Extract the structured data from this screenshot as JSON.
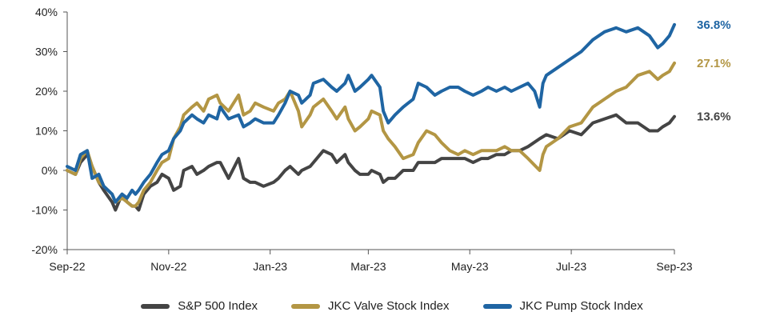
{
  "chart_data": {
    "type": "line",
    "title": "",
    "xlabel": "",
    "ylabel": "",
    "x_ticks": [
      "Sep-22",
      "Nov-22",
      "Jan-23",
      "Mar-23",
      "May-23",
      "Jul-23",
      "Sep-23"
    ],
    "ylim": [
      -20,
      40
    ],
    "y_ticks": [
      "-20%",
      "-10%",
      "0%",
      "10%",
      "20%",
      "30%",
      "40%"
    ],
    "grid": "none",
    "legend_position": "bottom",
    "series": [
      {
        "name": "S&P 500 Index",
        "color": "#444444",
        "end_label": "13.6%",
        "points": [
          [
            "2022-09-01",
            0
          ],
          [
            "2022-09-06",
            -1
          ],
          [
            "2022-09-09",
            2
          ],
          [
            "2022-09-13",
            4
          ],
          [
            "2022-09-16",
            1
          ],
          [
            "2022-09-20",
            -3
          ],
          [
            "2022-09-23",
            -5
          ],
          [
            "2022-09-28",
            -8
          ],
          [
            "2022-09-30",
            -10
          ],
          [
            "2022-10-04",
            -6
          ],
          [
            "2022-10-07",
            -8
          ],
          [
            "2022-10-10",
            -9
          ],
          [
            "2022-10-12",
            -9
          ],
          [
            "2022-10-14",
            -10
          ],
          [
            "2022-10-17",
            -6
          ],
          [
            "2022-10-21",
            -4
          ],
          [
            "2022-10-25",
            -3
          ],
          [
            "2022-10-28",
            -1
          ],
          [
            "2022-11-01",
            -2
          ],
          [
            "2022-11-04",
            -5
          ],
          [
            "2022-11-08",
            -4
          ],
          [
            "2022-11-10",
            0
          ],
          [
            "2022-11-15",
            1
          ],
          [
            "2022-11-18",
            -1
          ],
          [
            "2022-11-22",
            0
          ],
          [
            "2022-11-25",
            1
          ],
          [
            "2022-11-30",
            2
          ],
          [
            "2022-12-02",
            2
          ],
          [
            "2022-12-07",
            -2
          ],
          [
            "2022-12-13",
            3
          ],
          [
            "2022-12-16",
            -2
          ],
          [
            "2022-12-20",
            -3
          ],
          [
            "2022-12-23",
            -3
          ],
          [
            "2022-12-28",
            -4
          ],
          [
            "2023-01-03",
            -3
          ],
          [
            "2023-01-06",
            -2
          ],
          [
            "2023-01-10",
            0
          ],
          [
            "2023-01-13",
            1
          ],
          [
            "2023-01-18",
            -1
          ],
          [
            "2023-01-20",
            0
          ],
          [
            "2023-01-25",
            1
          ],
          [
            "2023-01-27",
            2
          ],
          [
            "2023-02-02",
            5
          ],
          [
            "2023-02-07",
            4
          ],
          [
            "2023-02-10",
            2
          ],
          [
            "2023-02-15",
            4
          ],
          [
            "2023-02-17",
            2
          ],
          [
            "2023-02-21",
            0
          ],
          [
            "2023-02-24",
            -1
          ],
          [
            "2023-03-01",
            -1
          ],
          [
            "2023-03-03",
            0
          ],
          [
            "2023-03-08",
            -1
          ],
          [
            "2023-03-10",
            -3
          ],
          [
            "2023-03-13",
            -2
          ],
          [
            "2023-03-17",
            -2
          ],
          [
            "2023-03-22",
            0
          ],
          [
            "2023-03-28",
            0
          ],
          [
            "2023-03-31",
            2
          ],
          [
            "2023-04-05",
            2
          ],
          [
            "2023-04-10",
            2
          ],
          [
            "2023-04-14",
            3
          ],
          [
            "2023-04-19",
            3
          ],
          [
            "2023-04-24",
            3
          ],
          [
            "2023-04-28",
            3
          ],
          [
            "2023-05-03",
            2
          ],
          [
            "2023-05-08",
            3
          ],
          [
            "2023-05-12",
            3
          ],
          [
            "2023-05-17",
            4
          ],
          [
            "2023-05-22",
            4
          ],
          [
            "2023-05-26",
            5
          ],
          [
            "2023-05-31",
            5
          ],
          [
            "2023-06-05",
            6
          ],
          [
            "2023-06-12",
            8
          ],
          [
            "2023-06-16",
            9
          ],
          [
            "2023-06-23",
            8
          ],
          [
            "2023-06-30",
            10
          ],
          [
            "2023-07-07",
            9
          ],
          [
            "2023-07-14",
            12
          ],
          [
            "2023-07-21",
            13
          ],
          [
            "2023-07-28",
            14
          ],
          [
            "2023-08-03",
            12
          ],
          [
            "2023-08-10",
            12
          ],
          [
            "2023-08-17",
            10
          ],
          [
            "2023-08-22",
            10
          ],
          [
            "2023-08-25",
            11
          ],
          [
            "2023-08-29",
            12
          ],
          [
            "2023-09-01",
            13.6
          ]
        ]
      },
      {
        "name": "JKC Valve Stock Index",
        "color": "#B39644",
        "end_label": "27.1%",
        "points": [
          [
            "2022-09-01",
            0
          ],
          [
            "2022-09-06",
            -1
          ],
          [
            "2022-09-09",
            3
          ],
          [
            "2022-09-13",
            5
          ],
          [
            "2022-09-16",
            1
          ],
          [
            "2022-09-20",
            -3
          ],
          [
            "2022-09-23",
            -4
          ],
          [
            "2022-09-28",
            -6
          ],
          [
            "2022-09-30",
            -8
          ],
          [
            "2022-10-04",
            -7
          ],
          [
            "2022-10-07",
            -8
          ],
          [
            "2022-10-10",
            -9
          ],
          [
            "2022-10-12",
            -9
          ],
          [
            "2022-10-14",
            -8
          ],
          [
            "2022-10-17",
            -5
          ],
          [
            "2022-10-21",
            -3
          ],
          [
            "2022-10-25",
            0
          ],
          [
            "2022-10-28",
            2
          ],
          [
            "2022-11-01",
            3
          ],
          [
            "2022-11-04",
            8
          ],
          [
            "2022-11-08",
            11
          ],
          [
            "2022-11-10",
            14
          ],
          [
            "2022-11-15",
            16
          ],
          [
            "2022-11-18",
            17
          ],
          [
            "2022-11-22",
            15
          ],
          [
            "2022-11-25",
            18
          ],
          [
            "2022-11-30",
            19
          ],
          [
            "2022-12-02",
            17
          ],
          [
            "2022-12-07",
            15
          ],
          [
            "2022-12-13",
            19
          ],
          [
            "2022-12-16",
            14
          ],
          [
            "2022-12-20",
            15
          ],
          [
            "2022-12-23",
            17
          ],
          [
            "2022-12-28",
            16
          ],
          [
            "2023-01-03",
            15
          ],
          [
            "2023-01-06",
            17
          ],
          [
            "2023-01-10",
            18
          ],
          [
            "2023-01-13",
            20
          ],
          [
            "2023-01-18",
            15
          ],
          [
            "2023-01-20",
            11
          ],
          [
            "2023-01-25",
            14
          ],
          [
            "2023-01-27",
            16
          ],
          [
            "2023-02-02",
            18
          ],
          [
            "2023-02-07",
            15
          ],
          [
            "2023-02-10",
            13
          ],
          [
            "2023-02-15",
            16
          ],
          [
            "2023-02-17",
            13
          ],
          [
            "2023-02-21",
            10
          ],
          [
            "2023-02-24",
            11
          ],
          [
            "2023-03-01",
            13
          ],
          [
            "2023-03-03",
            15
          ],
          [
            "2023-03-08",
            14
          ],
          [
            "2023-03-10",
            10
          ],
          [
            "2023-03-13",
            8
          ],
          [
            "2023-03-17",
            6
          ],
          [
            "2023-03-22",
            3
          ],
          [
            "2023-03-28",
            4
          ],
          [
            "2023-03-31",
            7
          ],
          [
            "2023-04-05",
            10
          ],
          [
            "2023-04-10",
            9
          ],
          [
            "2023-04-14",
            7
          ],
          [
            "2023-04-19",
            5
          ],
          [
            "2023-04-24",
            4
          ],
          [
            "2023-04-28",
            5
          ],
          [
            "2023-05-03",
            4
          ],
          [
            "2023-05-08",
            5
          ],
          [
            "2023-05-12",
            5
          ],
          [
            "2023-05-17",
            5
          ],
          [
            "2023-05-22",
            6
          ],
          [
            "2023-05-26",
            5
          ],
          [
            "2023-05-31",
            5
          ],
          [
            "2023-06-05",
            3
          ],
          [
            "2023-06-12",
            0
          ],
          [
            "2023-06-14",
            4
          ],
          [
            "2023-06-16",
            6
          ],
          [
            "2023-06-23",
            8
          ],
          [
            "2023-06-30",
            11
          ],
          [
            "2023-07-07",
            12
          ],
          [
            "2023-07-14",
            16
          ],
          [
            "2023-07-21",
            18
          ],
          [
            "2023-07-28",
            20
          ],
          [
            "2023-08-03",
            21
          ],
          [
            "2023-08-10",
            24
          ],
          [
            "2023-08-17",
            25
          ],
          [
            "2023-08-22",
            23
          ],
          [
            "2023-08-25",
            24
          ],
          [
            "2023-08-29",
            25
          ],
          [
            "2023-09-01",
            27.1
          ]
        ]
      },
      {
        "name": "JKC Pump Stock Index",
        "color": "#1F65A3",
        "end_label": "36.8%",
        "points": [
          [
            "2022-09-01",
            1
          ],
          [
            "2022-09-06",
            0
          ],
          [
            "2022-09-09",
            4
          ],
          [
            "2022-09-13",
            5
          ],
          [
            "2022-09-16",
            -2
          ],
          [
            "2022-09-20",
            -1
          ],
          [
            "2022-09-23",
            -4
          ],
          [
            "2022-09-28",
            -6
          ],
          [
            "2022-09-30",
            -8
          ],
          [
            "2022-10-04",
            -6
          ],
          [
            "2022-10-07",
            -7
          ],
          [
            "2022-10-10",
            -5
          ],
          [
            "2022-10-12",
            -6
          ],
          [
            "2022-10-14",
            -5
          ],
          [
            "2022-10-17",
            -3
          ],
          [
            "2022-10-21",
            -1
          ],
          [
            "2022-10-25",
            2
          ],
          [
            "2022-10-28",
            4
          ],
          [
            "2022-11-01",
            5
          ],
          [
            "2022-11-04",
            8
          ],
          [
            "2022-11-08",
            10
          ],
          [
            "2022-11-10",
            12
          ],
          [
            "2022-11-15",
            14
          ],
          [
            "2022-11-18",
            13
          ],
          [
            "2022-11-22",
            12
          ],
          [
            "2022-11-25",
            14
          ],
          [
            "2022-11-30",
            13
          ],
          [
            "2022-12-02",
            16
          ],
          [
            "2022-12-07",
            13
          ],
          [
            "2022-12-13",
            14
          ],
          [
            "2022-12-16",
            11
          ],
          [
            "2022-12-20",
            12
          ],
          [
            "2022-12-23",
            13
          ],
          [
            "2022-12-28",
            12
          ],
          [
            "2023-01-03",
            12
          ],
          [
            "2023-01-06",
            14
          ],
          [
            "2023-01-10",
            17
          ],
          [
            "2023-01-13",
            20
          ],
          [
            "2023-01-18",
            19
          ],
          [
            "2023-01-20",
            17
          ],
          [
            "2023-01-25",
            19
          ],
          [
            "2023-01-27",
            22
          ],
          [
            "2023-02-02",
            23
          ],
          [
            "2023-02-07",
            21
          ],
          [
            "2023-02-10",
            20
          ],
          [
            "2023-02-15",
            22
          ],
          [
            "2023-02-17",
            24
          ],
          [
            "2023-02-21",
            20
          ],
          [
            "2023-02-24",
            21
          ],
          [
            "2023-03-01",
            23
          ],
          [
            "2023-03-03",
            24
          ],
          [
            "2023-03-08",
            21
          ],
          [
            "2023-03-10",
            15
          ],
          [
            "2023-03-13",
            12
          ],
          [
            "2023-03-17",
            14
          ],
          [
            "2023-03-22",
            16
          ],
          [
            "2023-03-28",
            18
          ],
          [
            "2023-03-31",
            22
          ],
          [
            "2023-04-05",
            21
          ],
          [
            "2023-04-10",
            19
          ],
          [
            "2023-04-14",
            20
          ],
          [
            "2023-04-19",
            21
          ],
          [
            "2023-04-24",
            21
          ],
          [
            "2023-04-28",
            20
          ],
          [
            "2023-05-03",
            19
          ],
          [
            "2023-05-08",
            20
          ],
          [
            "2023-05-12",
            21
          ],
          [
            "2023-05-17",
            20
          ],
          [
            "2023-05-22",
            21
          ],
          [
            "2023-05-26",
            20
          ],
          [
            "2023-05-31",
            21
          ],
          [
            "2023-06-05",
            22
          ],
          [
            "2023-06-09",
            20
          ],
          [
            "2023-06-12",
            16
          ],
          [
            "2023-06-14",
            22
          ],
          [
            "2023-06-16",
            24
          ],
          [
            "2023-06-23",
            26
          ],
          [
            "2023-06-30",
            28
          ],
          [
            "2023-07-07",
            30
          ],
          [
            "2023-07-14",
            33
          ],
          [
            "2023-07-21",
            35
          ],
          [
            "2023-07-28",
            36
          ],
          [
            "2023-08-03",
            35
          ],
          [
            "2023-08-10",
            36
          ],
          [
            "2023-08-17",
            34
          ],
          [
            "2023-08-22",
            31
          ],
          [
            "2023-08-25",
            32
          ],
          [
            "2023-08-29",
            34
          ],
          [
            "2023-09-01",
            36.8
          ]
        ]
      }
    ]
  }
}
